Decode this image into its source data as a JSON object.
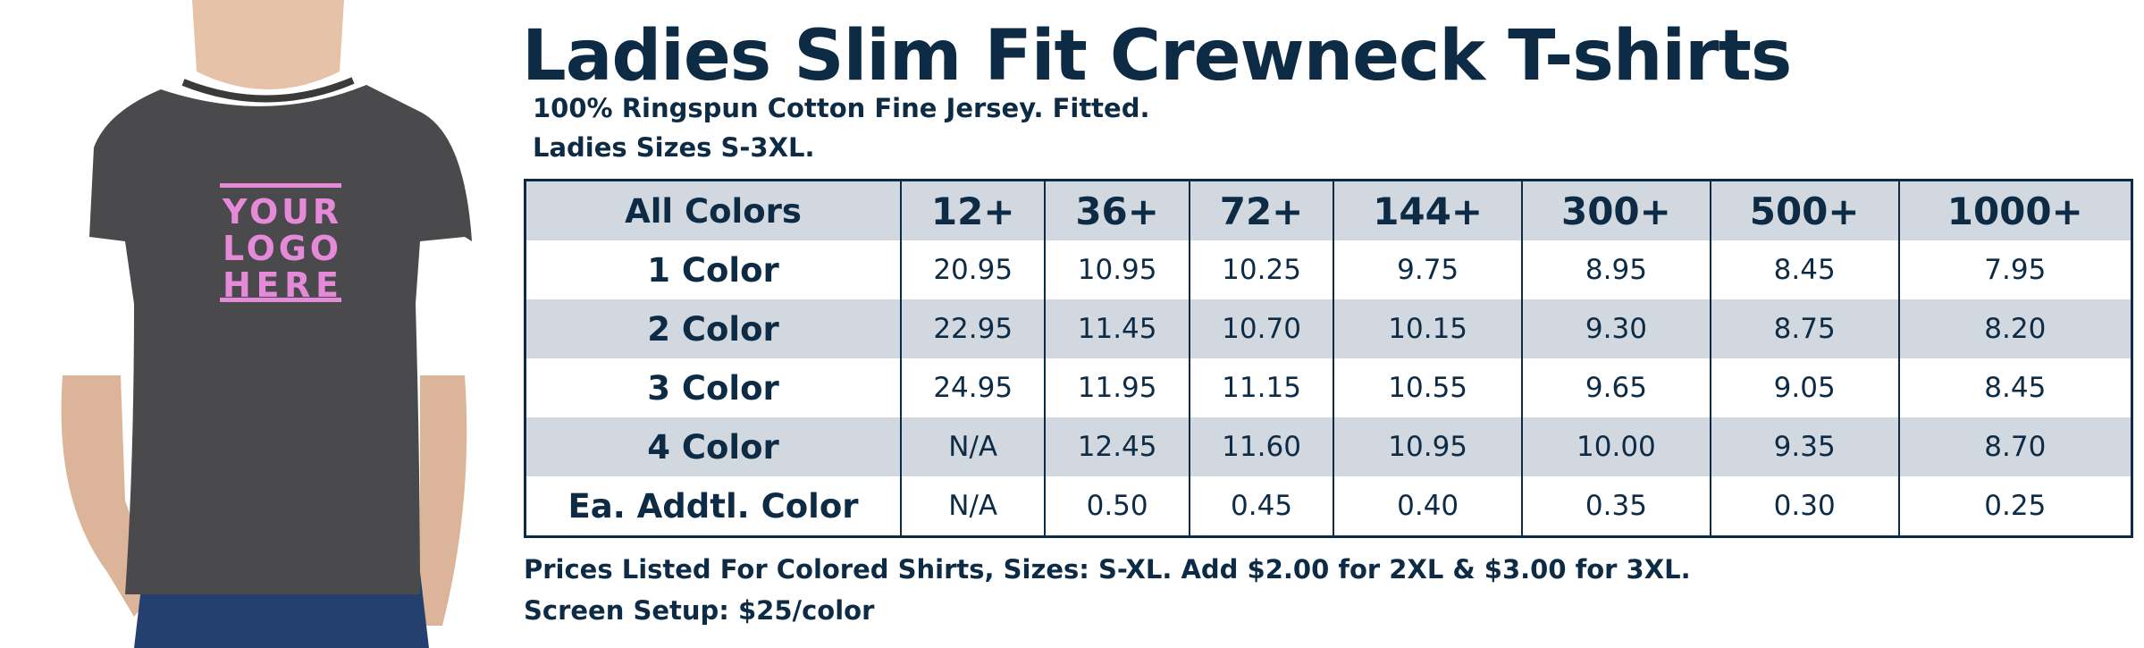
{
  "title": "Ladies Slim Fit Crewneck T-shirts",
  "subtitle": [
    "100% Ringspun Cotton Fine Jersey. Fitted.",
    "Ladies Sizes S-3XL."
  ],
  "logo": [
    "YOUR",
    "LOGO",
    "HERE"
  ],
  "table": {
    "header": [
      "All Colors",
      "12+",
      "36+",
      "72+",
      "144+",
      "300+",
      "500+",
      "1000+"
    ],
    "rows": [
      [
        "1 Color",
        "20.95",
        "10.95",
        "10.25",
        "9.75",
        "8.95",
        "8.45",
        "7.95"
      ],
      [
        "2 Color",
        "22.95",
        "11.45",
        "10.70",
        "10.15",
        "9.30",
        "8.75",
        "8.20"
      ],
      [
        "3 Color",
        "24.95",
        "11.95",
        "11.15",
        "10.55",
        "9.65",
        "9.05",
        "8.45"
      ],
      [
        "4 Color",
        "N/A",
        "12.45",
        "11.60",
        "10.95",
        "10.00",
        "9.35",
        "8.70"
      ],
      [
        "Ea. Addtl. Color",
        "N/A",
        "0.50",
        "0.45",
        "0.40",
        "0.35",
        "0.30",
        "0.25"
      ]
    ]
  },
  "notes": [
    "Prices Listed For Colored Shirts, Sizes: S-XL.  Add $2.00 for 2XL & $3.00 for 3XL.",
    "Screen Setup: $25/color"
  ]
}
